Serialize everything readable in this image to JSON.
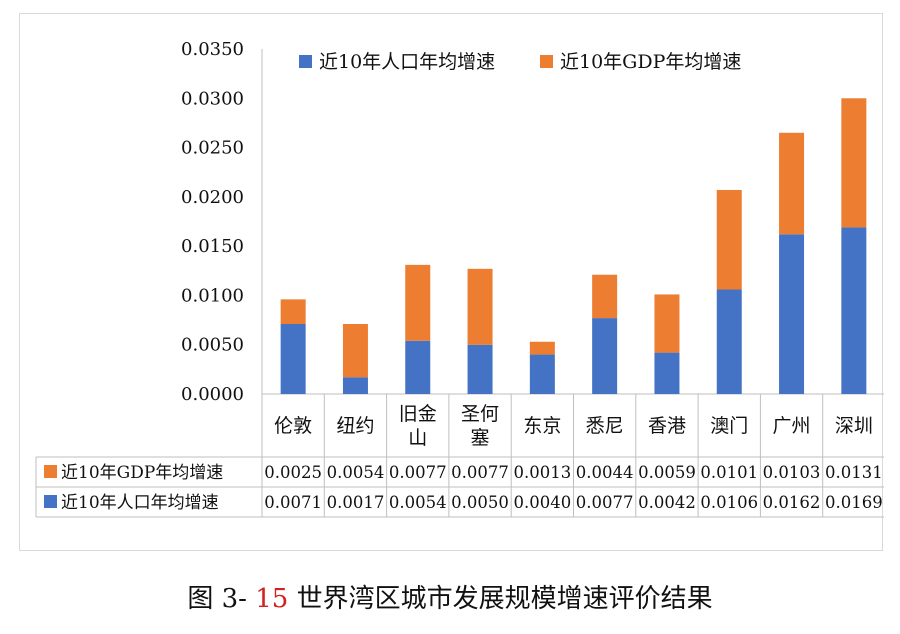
{
  "chart_data": {
    "type": "bar",
    "stacked": true,
    "title": "",
    "xlabel": "",
    "ylabel": "",
    "ylim": [
      0,
      0.035
    ],
    "ytick_step": 0.005,
    "ytick_labels": [
      "0.0000",
      "0.0050",
      "0.0100",
      "0.0150",
      "0.0200",
      "0.0250",
      "0.0300",
      "0.0350"
    ],
    "categories": [
      [
        "伦敦"
      ],
      [
        "纽约"
      ],
      [
        "旧金",
        "山"
      ],
      [
        "圣何",
        "塞"
      ],
      [
        "东京"
      ],
      [
        "悉尼"
      ],
      [
        "香港"
      ],
      [
        "澳门"
      ],
      [
        "广州"
      ],
      [
        "深圳"
      ]
    ],
    "series": [
      {
        "name": "近10年人口年均增速",
        "color": "#4472c4",
        "values": [
          0.0071,
          0.0017,
          0.0054,
          0.005,
          0.004,
          0.0077,
          0.0042,
          0.0106,
          0.0162,
          0.0169
        ],
        "labels": [
          "0.0071",
          "0.0017",
          "0.0054",
          "0.0050",
          "0.0040",
          "0.0077",
          "0.0042",
          "0.0106",
          "0.0162",
          "0.0169"
        ]
      },
      {
        "name": "近10年GDP年均增速",
        "color": "#ed7d31",
        "values": [
          0.0025,
          0.0054,
          0.0077,
          0.0077,
          0.0013,
          0.0044,
          0.0059,
          0.0101,
          0.0103,
          0.0131
        ],
        "labels": [
          "0.0025",
          "0.0054",
          "0.0077",
          "0.0077",
          "0.0013",
          "0.0044",
          "0.0059",
          "0.0101",
          "0.0103",
          "0.0131"
        ]
      }
    ],
    "legend": "top",
    "grid": false,
    "data_table": true
  },
  "caption": {
    "prefix": "图 3-",
    "number": "15",
    "text": "世界湾区城市发展规模增速评价结果"
  }
}
